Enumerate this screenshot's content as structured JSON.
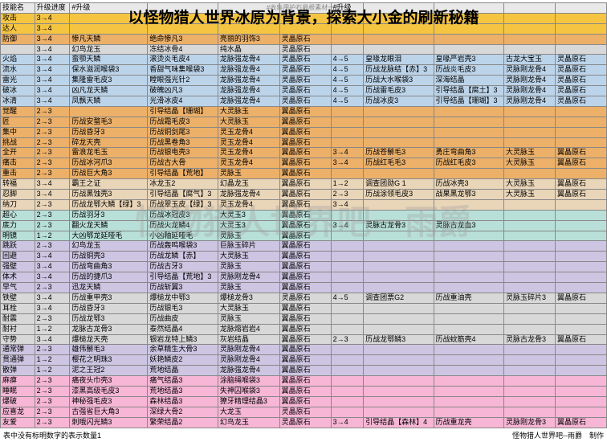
{
  "topHint": "#收集用护石最根素材一览",
  "title": "以怪物猎人世界冰原为背景，探索大小金的刷新秘籍",
  "watermark": "怪物猎人世界吧－雨爵",
  "footer": {
    "left": "表中没有标明数字的表示数量1",
    "right": "怪物猎人世界吧--雨爵　制作"
  },
  "palette": {
    "head": "#e9e9e9",
    "yellow": "#f5c542",
    "orange": "#ecb069",
    "gray": "#d8d8d8",
    "blue": "#bcd4ea",
    "tan": "#e9d5b8",
    "teal": "#b8e0d8",
    "lav": "#cdc5e2",
    "pink": "#f7b6d6",
    "white": "#fff"
  },
  "rows": [
    {
      "c": "head",
      "d": [
        "技能名",
        "升级进度",
        "#升级",
        "",
        "",
        "",
        "#升级",
        "",
        "",
        "",
        ""
      ]
    },
    {
      "c": "yellow",
      "d": [
        "攻击",
        "3→4",
        "",
        "",
        "",
        "",
        "",
        "",
        "",
        "",
        ""
      ]
    },
    {
      "c": "yellow",
      "d": [
        "达人",
        "3→4",
        "",
        "",
        "",
        "",
        "",
        "",
        "",
        "",
        ""
      ]
    },
    {
      "c": "orange",
      "d": [
        "防御",
        "3→4",
        "惨凡天鳞",
        "绝命惨凡3",
        "亮丽的羽饰3",
        "灵晶原石",
        "",
        "",
        "",
        "",
        ""
      ]
    },
    {
      "c": "gray",
      "d": [
        "",
        "3→4",
        "幻鸟龙玉",
        "冻结冰骨4",
        "纯水晶",
        "灵晶原石",
        "",
        "",
        "",
        "",
        ""
      ]
    },
    {
      "c": "blue",
      "d": [
        "火焰",
        "3→4",
        "蛮颚天鳞",
        "滚烫炎毛皮4",
        "龙脉强龙骨4",
        "灵晶原石",
        "4→5",
        "皇喙龙眼泪",
        "皇喙严岩壳3",
        "古龙大宝玉",
        "灵晶原石"
      ]
    },
    {
      "c": "blue",
      "d": [
        "流水",
        "3→4",
        "保水滋润喉袋3",
        "香甜气味集喉袋3",
        "龙脉强龙骨4",
        "灵晶原石",
        "4→5",
        "历战龙脉结【赤】3",
        "历战炎毛皮3",
        "灵脉刚龙骨4",
        "灵晶原石"
      ]
    },
    {
      "c": "blue",
      "d": [
        "雷光",
        "3→4",
        "集隆雷毛皮3",
        "瞠眼强光针2",
        "龙脉强龙骨4",
        "灵晶原石",
        "4→5",
        "历战大水喉袋3",
        "深海结晶",
        "灵脉刚龙骨4",
        "灵晶原石"
      ]
    },
    {
      "c": "blue",
      "d": [
        "破冰",
        "3→4",
        "凶凡龙天鳞",
        "破魄凶凡3",
        "龙脉强龙骨4",
        "灵晶原石",
        "4→5",
        "历战雷毛皮3",
        "引导结晶【腐土】3",
        "灵脉刚龙骨4",
        "灵晶原石"
      ]
    },
    {
      "c": "blue",
      "d": [
        "冰清",
        "3→4",
        "凤飘天鳞",
        "光滑冰皮4",
        "龙脉强龙骨4",
        "灵晶原石",
        "4→5",
        "历战冰皮3",
        "引导结晶【珊瑚】3",
        "灵脉刚龙骨4",
        "灵晶原石"
      ]
    },
    {
      "c": "orange",
      "d": [
        "觉醒",
        "2→3",
        "",
        "引导结晶【珊瑚】",
        "大灵脉玉",
        "翼晶原石",
        "",
        "",
        "",
        "",
        ""
      ]
    },
    {
      "c": "orange",
      "d": [
        "匠",
        "2→3",
        "历战安蝥毛3",
        "历战霜毛皮3",
        "大灵脉玉",
        "翼晶原石",
        "",
        "",
        "",
        "",
        ""
      ]
    },
    {
      "c": "orange",
      "d": [
        "集中",
        "2→3",
        "历战昏牙3",
        "历战铜剑尾3",
        "灵玉龙骨4",
        "翼晶原石",
        "",
        "",
        "",
        "",
        ""
      ]
    },
    {
      "c": "orange",
      "d": [
        "挑战",
        "2→3",
        "碎龙天壳",
        "历战黑卷角3",
        "灵玉龙骨4",
        "翼晶原石",
        "",
        "",
        "",
        "",
        ""
      ]
    },
    {
      "c": "orange",
      "d": [
        "全开",
        "2→3",
        "雷浪龙毛玉",
        "历战银电壳3",
        "灵玉龙骨4",
        "翼晶原石",
        "3→4",
        "历战苍鬃毛3",
        "勇庄弯曲角3",
        "大灵脉玉",
        "翼晶原石"
      ]
    },
    {
      "c": "orange",
      "d": [
        "痛击",
        "2→3",
        "历战冰河爪3",
        "历战古大骨",
        "灵玉龙骨4",
        "翼晶原石",
        "3→4",
        "历战红毛毛3",
        "历战红毛皮3",
        "大灵脉玉",
        "翼晶原石"
      ]
    },
    {
      "c": "orange",
      "d": [
        "重击",
        "2→3",
        "历战巨大角3",
        "引导结晶【荒地】",
        "灵脉玉",
        "翼晶原石",
        "",
        "",
        "",
        "",
        ""
      ]
    },
    {
      "c": "tan",
      "d": [
        "转福",
        "3→4",
        "霸王之证",
        "冰龙玉2",
        "幻晶龙玉",
        "翼晶原石",
        "1→2",
        "调查团勋G 1",
        "历战冰壳3",
        "大灵脉玉",
        "翼晶原石"
      ]
    },
    {
      "c": "tan",
      "d": [
        "忍脚",
        "3→4",
        "历战黑蚀壳3",
        "引导结晶【腐气】3",
        "龙脉强龙骨4",
        "翼晶原石",
        "2→3",
        "历战涂领毛皮3",
        "战果黑龙鄂3",
        "大灵脉玉",
        "翼晶原石"
      ]
    },
    {
      "c": "tan",
      "d": [
        "纳刀",
        "2→3",
        "历战龙鄂大鳞【绿】3",
        "历战翠玉皮【绿】3",
        "灵玉龙骨4",
        "翼晶原石",
        "3→4",
        "",
        "",
        "",
        ""
      ]
    },
    {
      "c": "teal",
      "d": [
        "超心",
        "2→3",
        "历战羽牙3",
        "历战冰冠皮3",
        "大灵玉3",
        "翼晶原石",
        "",
        "",
        "",
        "",
        ""
      ]
    },
    {
      "c": "teal",
      "d": [
        "底力",
        "2→3",
        "翻火龙天鳞",
        "历战火龙鳞4",
        "大灵玉3",
        "翼晶原石",
        "3→4",
        "灵脉古龙骨3",
        "灵脉古龙血3",
        "",
        ""
      ]
    },
    {
      "c": "teal",
      "d": [
        "明镜",
        "1→2",
        "大凶鄂龙延哑毛",
        "小凶釉延哑毛",
        "灵脉玉",
        "翼晶原石",
        "",
        "",
        "",
        "",
        ""
      ]
    },
    {
      "c": "lav",
      "d": [
        "跳跃",
        "2→3",
        "幻鸟龙玉",
        "历战轰鸣喉袋3",
        "巨脉玉碎片",
        "翼晶原石",
        "",
        "",
        "",
        "",
        ""
      ]
    },
    {
      "c": "lav",
      "d": [
        "回避",
        "3→4",
        "历战铜壳3",
        "历战龙鳞【赤】",
        "大灵脉玉",
        "翼晶原石",
        "",
        "",
        "",
        "",
        ""
      ]
    },
    {
      "c": "lav",
      "d": [
        "强壁",
        "3→4",
        "历战弯曲角3",
        "历战古牙3",
        "灵脉玉",
        "翼晶原石",
        "",
        "",
        "",
        "",
        ""
      ]
    },
    {
      "c": "lav",
      "d": [
        "体术",
        "3→4",
        "历战的捷爪3",
        "引导结晶【荒地】3",
        "灵脉刚龙骨4",
        "翼晶原石",
        "",
        "",
        "",
        "",
        ""
      ]
    },
    {
      "c": "lav",
      "d": [
        "早气",
        "2→3",
        "迅龙天鳞",
        "历战斩翼3",
        "灵脉玉",
        "翼晶原石",
        "",
        "",
        "",
        "",
        ""
      ]
    },
    {
      "c": "gray",
      "d": [
        "铁壁",
        "3→4",
        "历战重甲壳3",
        "爆槌龙中鄂3",
        "爆槌龙骨3",
        "灵晶原石",
        "4→5",
        "调查团票G2",
        "历战重油壳",
        "灵脉玉碎片3",
        "翼晶原石"
      ]
    },
    {
      "c": "gray",
      "d": [
        "耳栓",
        "3→4",
        "历战昏牙3",
        "历战银毛3",
        "大灵脉玉",
        "翼晶原石",
        "",
        "",
        "",
        "",
        ""
      ]
    },
    {
      "c": "gray",
      "d": [
        "耐震",
        "2→3",
        "历战龙鄂3",
        "历战曲皮",
        "灵脉玉",
        "翼晶原石",
        "",
        "",
        "",
        "",
        ""
      ]
    },
    {
      "c": "gray",
      "d": [
        "耐衬",
        "1→2",
        "龙脉古龙骨3",
        "泰然结晶4",
        "龙脉熔岩岩4",
        "翼晶原石",
        "",
        "",
        "",
        "",
        ""
      ]
    },
    {
      "c": "gray",
      "d": [
        "守势",
        "3→4",
        "爆槌龙天壳",
        "银岩龙特上鳞3",
        "灰岩结晶",
        "翼晶原石",
        "2→3",
        "历战龙鄂鳞3",
        "历战蚊筋壳4",
        "灵脉古龙骨3",
        "翼晶原石"
      ]
    },
    {
      "c": "lav",
      "d": [
        "通常弹",
        "2→3",
        "雄伟鬃毛3",
        "余草精生大骨3",
        "灵脉刚龙骨4",
        "翼晶原石",
        "",
        "",
        "",
        "",
        ""
      ]
    },
    {
      "c": "lav",
      "d": [
        "贯通弹",
        "1→2",
        "樱花之明珠3",
        "妖艳鳞皮2",
        "灵脉刚龙骨4",
        "翼晶原石",
        "",
        "",
        "",
        "",
        ""
      ]
    },
    {
      "c": "lav",
      "d": [
        "散弹",
        "1→2",
        "泥之王冠2",
        "荒地结晶",
        "龙脉强龙骨4",
        "翼晶原石",
        "",
        "",
        "",
        "",
        ""
      ]
    },
    {
      "c": "pink",
      "d": [
        "麻痹",
        "2→3",
        "痛夜头巾壳3",
        "痛气结晶3",
        "涂脑绳喉袋3",
        "翼晶原石",
        "",
        "",
        "",
        "",
        ""
      ]
    },
    {
      "c": "pink",
      "d": [
        "睡眠",
        "2→3",
        "漆黑高级毛皮3",
        "荒地结晶3",
        "失神囚喉袋3",
        "翼晶原石",
        "",
        "",
        "",
        "",
        ""
      ]
    },
    {
      "c": "pink",
      "d": [
        "爆破",
        "2→3",
        "神秘强毛皮3",
        "森林结晶3",
        "獠牙精理结晶3",
        "翼晶原石",
        "",
        "",
        "",
        "",
        ""
      ]
    },
    {
      "c": "pink",
      "d": [
        "应喜龙",
        "2→3",
        "古强省巨大角3",
        "深绿大骨2",
        "大龙玉",
        "灵晶原石",
        "",
        "",
        "",
        "",
        ""
      ]
    },
    {
      "c": "pink",
      "d": [
        "友爱",
        "2→3",
        "刺哦闪光鳞3",
        "繁荣结晶2",
        "幻鸟龙玉",
        "灵晶原石",
        "3→4",
        "引导结晶【森林】4",
        "历战重龙壳",
        "灵脉刚龙骨3",
        "翼晶原石"
      ]
    }
  ]
}
